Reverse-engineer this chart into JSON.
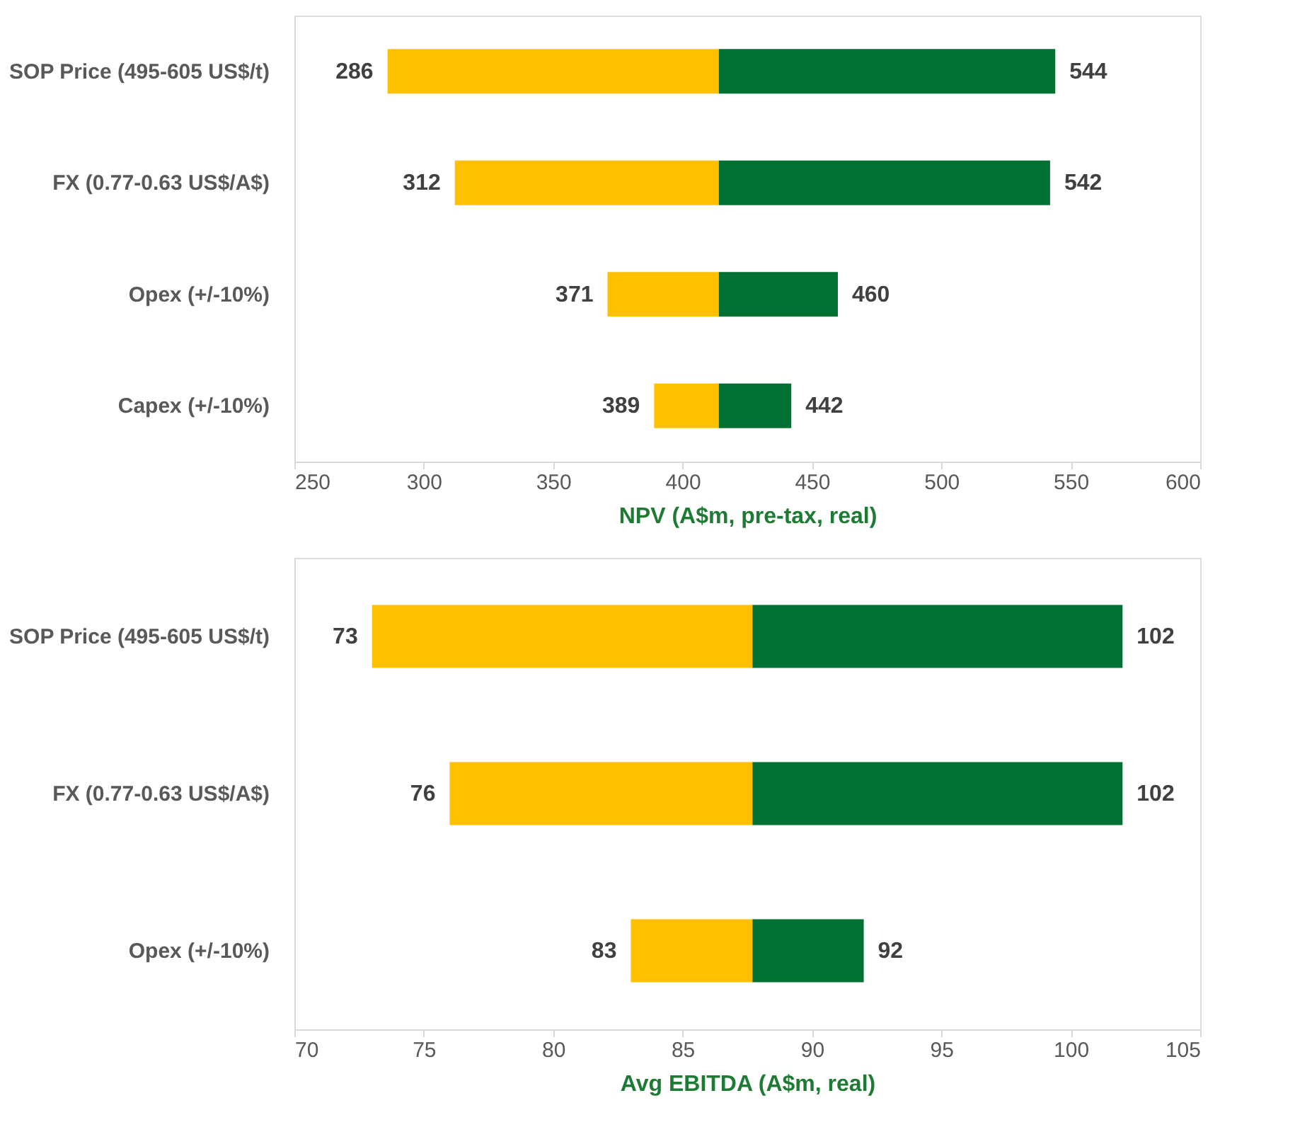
{
  "chart_data": [
    {
      "type": "bar",
      "orientation": "horizontal",
      "categories": [
        "SOP Price (495-605 US$/t)",
        "FX (0.77-0.63 US$/A$)",
        "Opex (+/-10%)",
        "Capex (+/-10%)"
      ],
      "series": [
        {
          "color": "#ffc000",
          "base": [
            414,
            414,
            414,
            414
          ],
          "values": [
            -128,
            -102,
            -43,
            -25
          ],
          "value_labels": [
            "286",
            "312",
            "371",
            "389"
          ]
        },
        {
          "color": "#007033",
          "base": [
            414,
            414,
            414,
            414
          ],
          "values": [
            130,
            128,
            46,
            28
          ],
          "value_labels": [
            "544",
            "542",
            "460",
            "442"
          ]
        }
      ],
      "xlim": [
        250,
        600
      ],
      "xticks": [
        250,
        300,
        350,
        400,
        450,
        500,
        550,
        600
      ],
      "xlabel": "NPV (A$m, pre-tax, real)",
      "grid": false
    },
    {
      "type": "bar",
      "orientation": "horizontal",
      "categories": [
        "SOP Price (495-605 US$/t)",
        "FX (0.77-0.63 US$/A$)",
        "Opex (+/-10%)"
      ],
      "series": [
        {
          "color": "#ffc000",
          "base": [
            87.7,
            87.7,
            87.7
          ],
          "values": [
            -14.7,
            -11.7,
            -4.7
          ],
          "value_labels": [
            "73",
            "76",
            "83"
          ]
        },
        {
          "color": "#007033",
          "base": [
            87.7,
            87.7,
            87.7
          ],
          "values": [
            14.3,
            14.3,
            4.3
          ],
          "value_labels": [
            "102",
            "102",
            "92"
          ]
        }
      ],
      "xlim": [
        70,
        105
      ],
      "xticks": [
        70,
        75,
        80,
        85,
        90,
        95,
        100,
        105
      ],
      "xlabel": "Avg EBITDA (A$m, real)",
      "grid": false
    }
  ]
}
